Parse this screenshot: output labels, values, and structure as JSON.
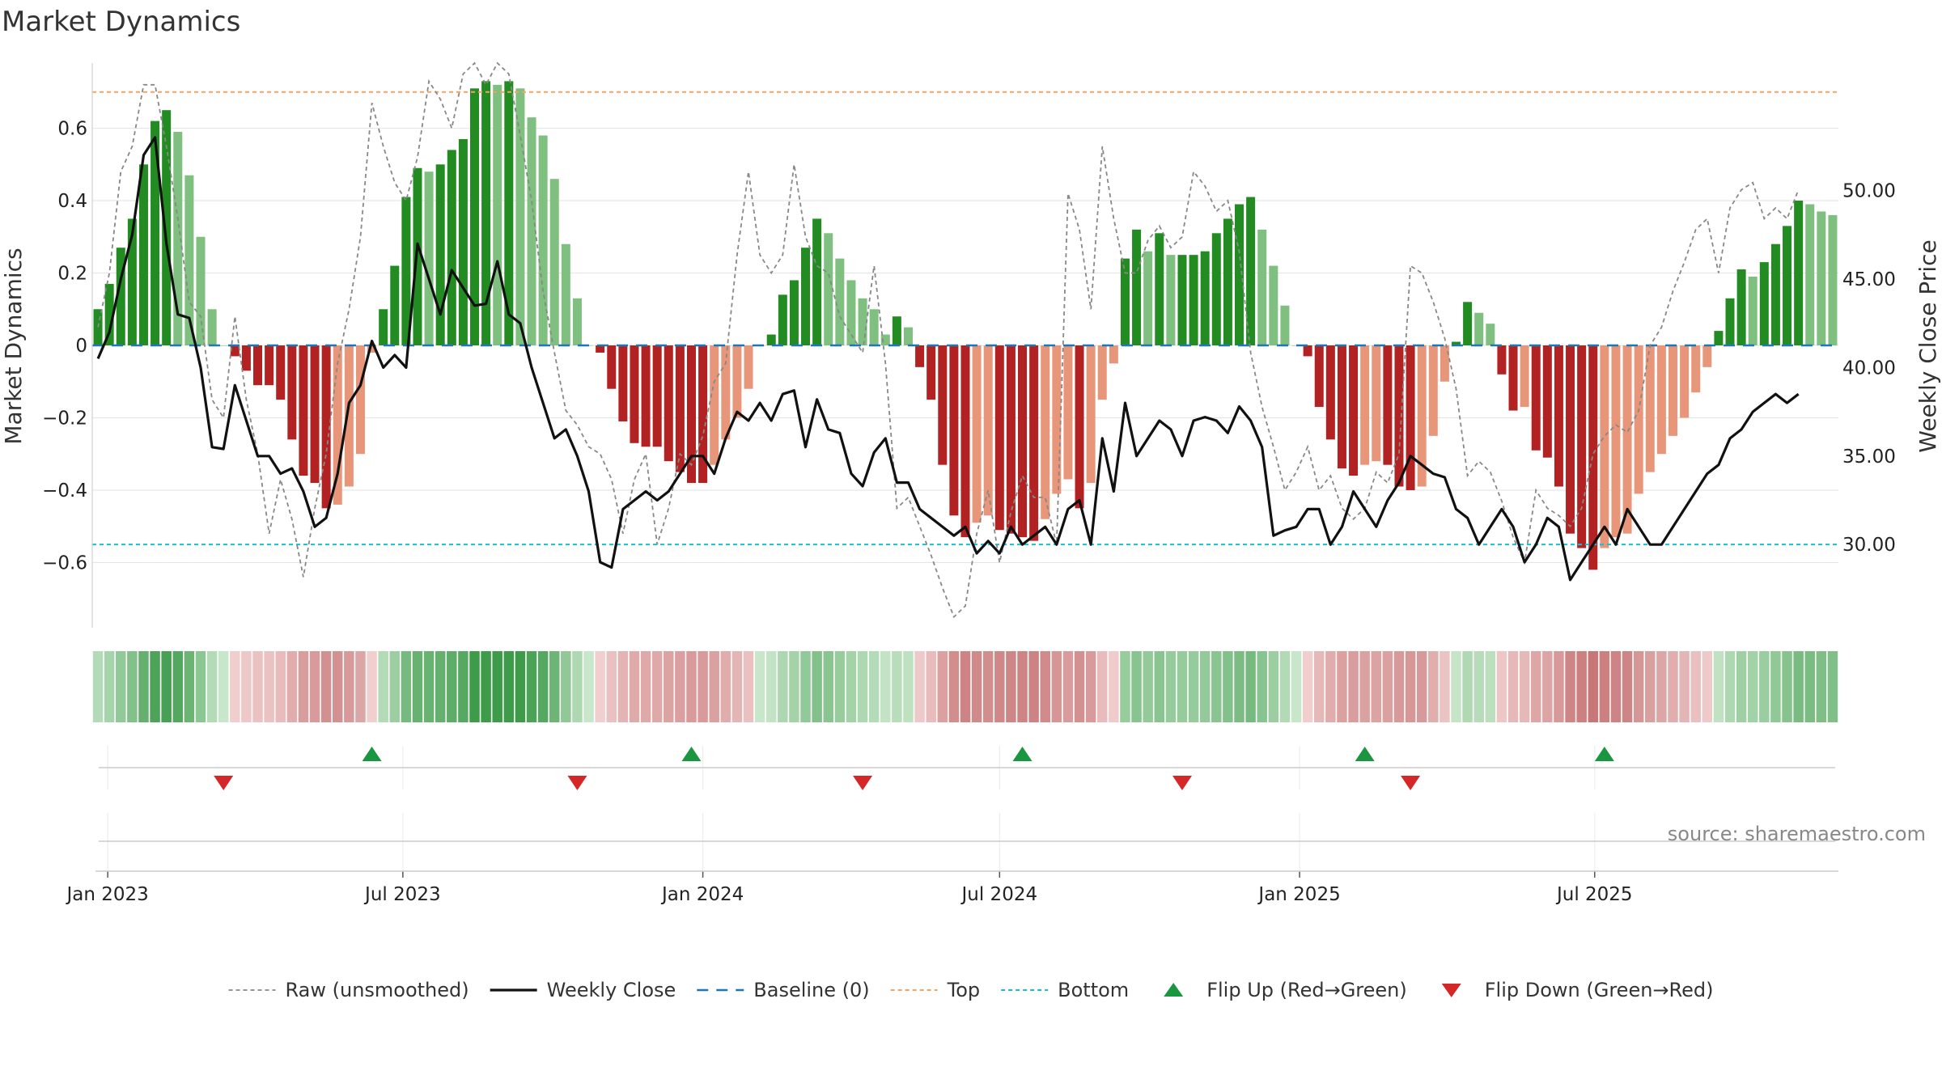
{
  "chart_data": {
    "type": "bar",
    "title": "Market Dynamics",
    "ylabel": "Market Dynamics",
    "y2label": "Weekly Close Price",
    "ylim": [
      -0.78,
      0.78
    ],
    "y2lim": [
      25.3,
      57.2
    ],
    "y_ticks": [
      0.6,
      0.4,
      0.2,
      0,
      -0.2,
      -0.4,
      -0.6
    ],
    "y_tick_labels": [
      "0.6",
      "0.4",
      "0.2",
      "0",
      "−0.2",
      "−0.4",
      "−0.6"
    ],
    "y2_ticks": [
      50,
      45,
      40,
      35,
      30
    ],
    "y2_tick_labels": [
      "50.00",
      "45.00",
      "40.00",
      "35.00",
      "30.00"
    ],
    "x_start": "2022-12-26",
    "x_ticks": [
      {
        "label": "Jan 2023",
        "date": "2023-01-01"
      },
      {
        "label": "Jul 2023",
        "date": "2023-07-01"
      },
      {
        "label": "Jan 2024",
        "date": "2024-01-01"
      },
      {
        "label": "Jul 2024",
        "date": "2024-07-01"
      },
      {
        "label": "Jan 2025",
        "date": "2025-01-01"
      },
      {
        "label": "Jul 2025",
        "date": "2025-07-01"
      }
    ],
    "top_level": 0.7,
    "bottom_level": -0.55,
    "baseline": 0,
    "smoothed": [
      0.1,
      0.17,
      0.27,
      0.35,
      0.5,
      0.62,
      0.65,
      0.59,
      0.47,
      0.3,
      0.1,
      0.0,
      -0.03,
      -0.07,
      -0.11,
      -0.11,
      -0.15,
      -0.26,
      -0.36,
      -0.38,
      -0.45,
      -0.44,
      -0.39,
      -0.3,
      -0.02,
      0.1,
      0.22,
      0.41,
      0.49,
      0.48,
      0.5,
      0.54,
      0.57,
      0.71,
      0.73,
      0.72,
      0.73,
      0.71,
      0.63,
      0.58,
      0.46,
      0.28,
      0.13,
      0.0,
      -0.02,
      -0.12,
      -0.21,
      -0.27,
      -0.28,
      -0.28,
      -0.32,
      -0.35,
      -0.38,
      -0.38,
      -0.33,
      -0.26,
      -0.2,
      -0.12,
      0.0,
      0.03,
      0.14,
      0.18,
      0.27,
      0.35,
      0.31,
      0.24,
      0.18,
      0.13,
      0.1,
      0.03,
      0.08,
      0.05,
      -0.06,
      -0.15,
      -0.33,
      -0.47,
      -0.53,
      -0.49,
      -0.47,
      -0.51,
      -0.52,
      -0.53,
      -0.54,
      -0.48,
      -0.41,
      -0.37,
      -0.45,
      -0.38,
      -0.15,
      -0.05,
      0.24,
      0.32,
      0.26,
      0.31,
      0.25,
      0.25,
      0.25,
      0.26,
      0.31,
      0.35,
      0.39,
      0.41,
      0.32,
      0.22,
      0.11,
      0.0,
      -0.03,
      -0.17,
      -0.26,
      -0.34,
      -0.36,
      -0.33,
      -0.32,
      -0.33,
      -0.39,
      -0.4,
      -0.39,
      -0.25,
      -0.1,
      0.01,
      0.12,
      0.09,
      0.06,
      -0.08,
      -0.18,
      -0.17,
      -0.29,
      -0.31,
      -0.39,
      -0.52,
      -0.56,
      -0.62,
      -0.56,
      -0.53,
      -0.52,
      -0.41,
      -0.35,
      -0.3,
      -0.25,
      -0.2,
      -0.13,
      -0.06,
      0.04,
      0.13,
      0.21,
      0.19,
      0.23,
      0.28,
      0.33,
      0.4,
      0.39,
      0.37,
      0.36
    ],
    "raw": [
      0.05,
      0.2,
      0.48,
      0.55,
      0.72,
      0.72,
      0.55,
      0.35,
      0.12,
      0.08,
      -0.15,
      -0.2,
      0.08,
      -0.15,
      -0.3,
      -0.52,
      -0.37,
      -0.48,
      -0.64,
      -0.45,
      -0.3,
      -0.05,
      0.1,
      0.3,
      0.67,
      0.55,
      0.45,
      0.4,
      0.52,
      0.73,
      0.68,
      0.6,
      0.75,
      0.78,
      0.72,
      0.78,
      0.75,
      0.58,
      0.4,
      0.15,
      -0.02,
      -0.18,
      -0.22,
      -0.28,
      -0.3,
      -0.37,
      -0.52,
      -0.37,
      -0.3,
      -0.55,
      -0.45,
      -0.3,
      -0.33,
      -0.25,
      -0.1,
      -0.05,
      0.25,
      0.48,
      0.25,
      0.2,
      0.25,
      0.5,
      0.3,
      0.22,
      0.2,
      0.08,
      0.03,
      -0.02,
      0.22,
      -0.05,
      -0.45,
      -0.42,
      -0.5,
      -0.58,
      -0.67,
      -0.75,
      -0.72,
      -0.52,
      -0.4,
      -0.6,
      -0.46,
      -0.36,
      -0.42,
      -0.42,
      -0.55,
      0.42,
      0.32,
      0.1,
      0.55,
      0.35,
      0.2,
      0.2,
      0.29,
      0.33,
      0.27,
      0.3,
      0.48,
      0.44,
      0.37,
      0.4,
      0.26,
      -0.02,
      -0.17,
      -0.28,
      -0.4,
      -0.35,
      -0.28,
      -0.4,
      -0.36,
      -0.45,
      -0.48,
      -0.45,
      -0.35,
      -0.38,
      -0.3,
      0.22,
      0.2,
      0.12,
      0.02,
      -0.12,
      -0.36,
      -0.32,
      -0.35,
      -0.43,
      -0.53,
      -0.6,
      -0.4,
      -0.45,
      -0.47,
      -0.5,
      -0.45,
      -0.3,
      -0.25,
      -0.22,
      -0.24,
      -0.18,
      0.0,
      0.05,
      0.15,
      0.23,
      0.32,
      0.35,
      0.2,
      0.38,
      0.43,
      0.45,
      0.35,
      0.38,
      0.35,
      0.43
    ],
    "weekly_close": [
      40.5,
      42,
      45,
      47.5,
      52,
      53,
      47,
      43,
      42.8,
      40,
      35.5,
      35.4,
      39,
      37,
      35,
      35,
      34,
      34.3,
      33,
      31,
      31.5,
      34,
      38,
      39,
      41.5,
      40,
      40.7,
      40,
      47,
      45,
      43,
      45.5,
      44.5,
      43.5,
      43.6,
      46,
      43,
      42.5,
      40,
      38,
      36,
      36.5,
      35,
      33,
      29,
      28.7,
      32,
      32.5,
      33,
      32.5,
      33,
      34,
      35,
      35,
      34,
      36,
      37.5,
      37,
      38,
      37,
      38.5,
      38.7,
      35.5,
      38.2,
      36.5,
      36.3,
      34,
      33.3,
      35.2,
      36,
      33.5,
      33.5,
      32,
      31.5,
      31,
      30.5,
      31,
      29.5,
      30.2,
      29.5,
      31,
      30,
      30.5,
      31,
      30,
      32,
      32.5,
      30,
      36,
      33,
      38,
      35,
      36,
      37,
      36.5,
      35,
      37,
      37.2,
      37,
      36.3,
      37.8,
      37,
      35.5,
      30.5,
      30.8,
      31,
      32,
      32,
      30,
      31,
      33,
      32,
      31,
      32.5,
      33.5,
      35,
      34.5,
      34,
      33.8,
      32,
      31.5,
      30,
      31,
      32,
      31,
      29,
      30,
      31.5,
      31,
      28,
      29,
      30,
      31,
      30,
      32,
      31,
      30,
      30,
      31,
      32,
      33,
      34,
      34.5,
      36,
      36.5,
      37.5,
      38,
      38.5,
      38,
      38.5
    ],
    "flip_up": [
      {
        "label": "Flip Up (Red→Green)",
        "date": "2023-06-12"
      },
      {
        "label": "Flip Up (Red→Green)",
        "date": "2023-12-25"
      },
      {
        "label": "Flip Up (Red→Green)",
        "date": "2024-07-15"
      },
      {
        "label": "Flip Up (Red→Green)",
        "date": "2025-02-10"
      },
      {
        "label": "Flip Up (Red→Green)",
        "date": "2025-07-07"
      }
    ],
    "flip_down": [
      {
        "label": "Flip Down (Green→Red)",
        "date": "2023-03-13"
      },
      {
        "label": "Flip Down (Green→Red)",
        "date": "2023-10-16"
      },
      {
        "label": "Flip Down (Green→Red)",
        "date": "2024-04-08"
      },
      {
        "label": "Flip Down (Green→Red)",
        "date": "2024-10-21"
      },
      {
        "label": "Flip Down (Green→Red)",
        "date": "2025-03-10"
      }
    ],
    "legend": [
      {
        "label": "Raw (unsmoothed)",
        "kind": "dashed",
        "color": "#888888"
      },
      {
        "label": "Weekly Close",
        "kind": "solid",
        "color": "#111111"
      },
      {
        "label": "Baseline (0)",
        "kind": "longdash",
        "color": "#1f77b4"
      },
      {
        "label": "Top",
        "kind": "dotted",
        "color": "#f4a261"
      },
      {
        "label": "Bottom",
        "kind": "dotted",
        "color": "#17becf"
      },
      {
        "label": "Flip Up (Red→Green)",
        "kind": "tri-up",
        "color": "#1a9641"
      },
      {
        "label": "Flip Down (Green→Red)",
        "kind": "tri-down",
        "color": "#d62728"
      }
    ],
    "legend_position": "bottom",
    "source": "source: sharemaestro.com"
  },
  "colors": {
    "green_strong": "#228b22",
    "green_light": "#7fbf7f",
    "red_strong": "#b22222",
    "red_light": "#e8967a",
    "top": "#f4a261",
    "bottom": "#17becf",
    "baseline": "#1f77b4",
    "raw": "#888888",
    "close": "#111111",
    "flip_up": "#1a9641",
    "flip_down": "#d62728"
  }
}
